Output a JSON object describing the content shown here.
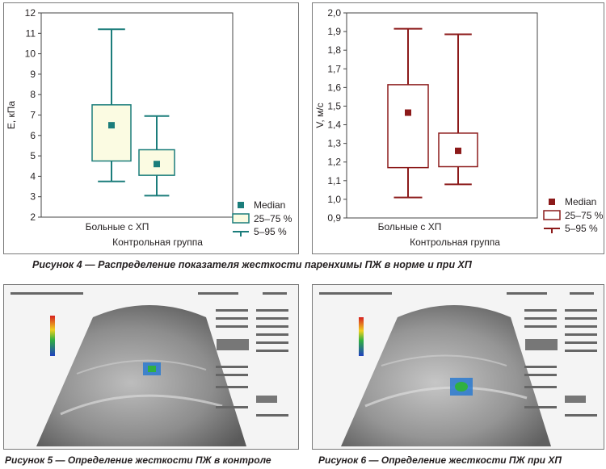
{
  "figures": [
    {
      "caption": "Рисунок 4 — Распределение показателя жесткости паренхимы ПЖ в норме и при ХП"
    },
    {
      "caption": "Рисунок 5 — Определение жесткости ПЖ в контроле"
    },
    {
      "caption": "Рисунок 6 — Определение жесткости ПЖ при ХП"
    }
  ],
  "chart_data": [
    {
      "type": "boxplot",
      "ylabel": "E, кПа",
      "ylim": [
        2,
        12
      ],
      "yticks": [
        "2",
        "3",
        "4",
        "5",
        "6",
        "7",
        "8",
        "9",
        "10",
        "11",
        "12"
      ],
      "color": "#1b7d7b",
      "box_fill": "#fbfbe2",
      "categories": [
        "Больные с ХП",
        "Контрольная группа"
      ],
      "series": [
        {
          "category": "Больные с ХП",
          "median": 6.5,
          "q1": 4.75,
          "q3": 7.5,
          "p5": 3.75,
          "p95": 11.2
        },
        {
          "category": "Контрольная группа",
          "median": 4.6,
          "q1": 4.05,
          "q3": 5.3,
          "p5": 3.05,
          "p95": 6.95
        }
      ],
      "legend": [
        "Median",
        "25–75 %",
        "5–95 %"
      ],
      "legend_position": "bottom-right",
      "grid": false
    },
    {
      "type": "boxplot",
      "ylabel": "V, м/с",
      "ylim": [
        0.9,
        2.0
      ],
      "yticks": [
        "0,9",
        "1,0",
        "1,1",
        "1,2",
        "1,3",
        "1,4",
        "1,5",
        "1,6",
        "1,7",
        "1,8",
        "1,9",
        "2,0"
      ],
      "color": "#8c1a1a",
      "box_fill": "#ffffff",
      "categories": [
        "Больные с ХП",
        "Контрольная группа"
      ],
      "series": [
        {
          "category": "Больные с ХП",
          "median": 1.465,
          "q1": 1.17,
          "q3": 1.615,
          "p5": 1.01,
          "p95": 1.915
        },
        {
          "category": "Контрольная группа",
          "median": 1.26,
          "q1": 1.175,
          "q3": 1.355,
          "p5": 1.08,
          "p95": 1.885
        }
      ],
      "legend": [
        "Median",
        "25–75 %",
        "5–95 %"
      ],
      "legend_position": "bottom-right",
      "grid": false
    }
  ]
}
